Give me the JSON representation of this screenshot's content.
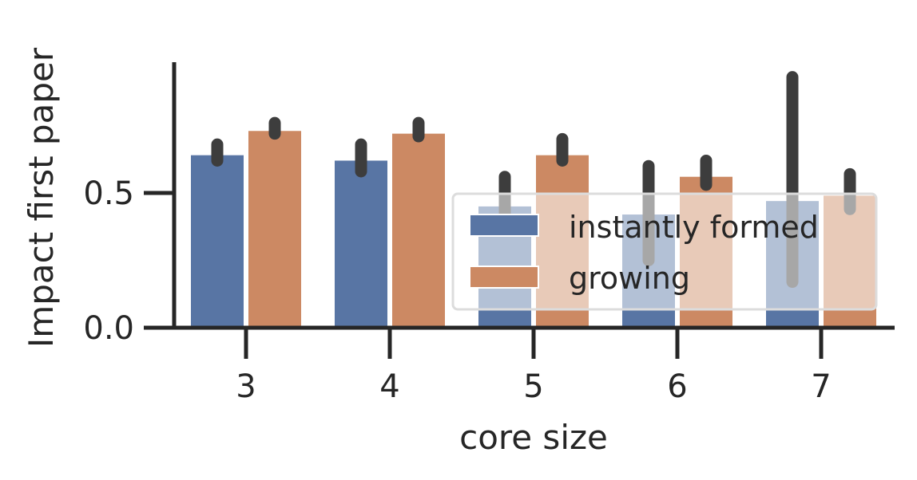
{
  "chart_data": {
    "type": "bar",
    "xlabel": "core size",
    "ylabel": "Impact first paper",
    "categories": [
      "3",
      "4",
      "5",
      "6",
      "7"
    ],
    "yticks": [
      0.0,
      0.5
    ],
    "ytick_labels": [
      "0.0",
      "0.5"
    ],
    "ylim": [
      0,
      1.0
    ],
    "grid": false,
    "legend_position": "lower-right",
    "series": [
      {
        "name": "instantly formed",
        "color": "#5875a4",
        "values": [
          0.64,
          0.62,
          0.45,
          0.42,
          0.47
        ],
        "ci_low": [
          0.62,
          0.58,
          0.38,
          0.25,
          0.17
        ],
        "ci_high": [
          0.68,
          0.68,
          0.56,
          0.6,
          0.93
        ]
      },
      {
        "name": "growing",
        "color": "#cc8963",
        "values": [
          0.73,
          0.72,
          0.64,
          0.56,
          0.49
        ],
        "ci_low": [
          0.72,
          0.71,
          0.62,
          0.53,
          0.44
        ],
        "ci_high": [
          0.76,
          0.76,
          0.7,
          0.62,
          0.57
        ]
      }
    ]
  }
}
